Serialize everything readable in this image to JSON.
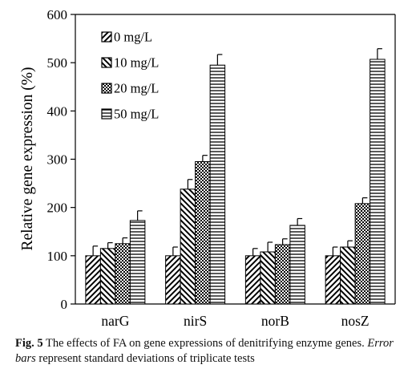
{
  "chart_data": {
    "type": "bar",
    "title": "",
    "ylabel": "Relative gene expression (%)",
    "xlabel": "",
    "ylim": [
      0,
      600
    ],
    "yticks": [
      0,
      100,
      200,
      300,
      400,
      500,
      600
    ],
    "grid": false,
    "legend_position": "top-left",
    "categories": [
      "narG",
      "nirS",
      "norB",
      "nosZ"
    ],
    "series": [
      {
        "name": "0 mg/L",
        "pattern": "diag-up",
        "values": [
          100,
          100,
          100,
          100
        ],
        "errors": [
          20,
          18,
          15,
          18
        ]
      },
      {
        "name": "10 mg/L",
        "pattern": "diag-down",
        "values": [
          115,
          238,
          108,
          118
        ],
        "errors": [
          12,
          20,
          20,
          13
        ]
      },
      {
        "name": "20 mg/L",
        "pattern": "crosshatch",
        "values": [
          125,
          295,
          123,
          208
        ],
        "errors": [
          12,
          13,
          12,
          12
        ]
      },
      {
        "name": "50 mg/L",
        "pattern": "horizontal",
        "values": [
          173,
          495,
          163,
          507
        ],
        "errors": [
          20,
          22,
          14,
          22
        ]
      }
    ]
  },
  "caption": {
    "label": "Fig. 5",
    "text_before": "The effects of FA on gene expressions of denitrifying enzyme genes.",
    "italic": "Error bars",
    "text_after": "represent standard deviations of triplicate tests"
  }
}
